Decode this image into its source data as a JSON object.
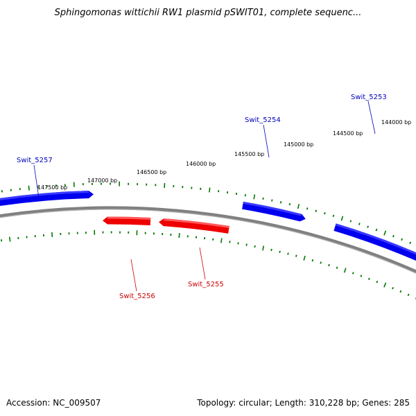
{
  "title": "Sphingomonas wittichii RW1 plasmid pSWIT01, complete sequenc...",
  "footer": {
    "accession_label": "Accession:",
    "accession": "NC_009507",
    "topology_label": "Topology:",
    "topology": "circular",
    "length_label": "Length:",
    "length": "310,228 bp",
    "genes_label": "Genes:",
    "genes": "285"
  },
  "colors": {
    "forward_gene": "#0000ee",
    "reverse_gene": "#ee0000",
    "backbone": "#808080",
    "tick": "#007700",
    "forward_label": "#0000bb",
    "reverse_label": "#cc0000"
  },
  "scale_labels": [
    "144000 bp",
    "144500 bp",
    "145000 bp",
    "145500 bp",
    "146000 bp",
    "146500 bp",
    "147000 bp",
    "147500 bp"
  ],
  "genes": [
    {
      "name": "Swit_5253",
      "strand": "forward"
    },
    {
      "name": "Swit_5254",
      "strand": "forward"
    },
    {
      "name": "Swit_5257",
      "strand": "forward"
    },
    {
      "name": "Swit_5255",
      "strand": "reverse"
    },
    {
      "name": "Swit_5256",
      "strand": "reverse"
    }
  ]
}
